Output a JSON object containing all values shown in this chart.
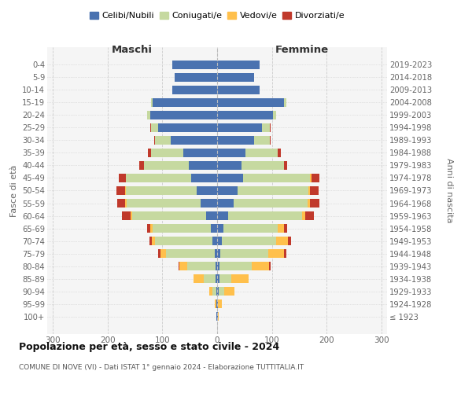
{
  "age_groups": [
    "0-4",
    "5-9",
    "10-14",
    "15-19",
    "20-24",
    "25-29",
    "30-34",
    "35-39",
    "40-44",
    "45-49",
    "50-54",
    "55-59",
    "60-64",
    "65-69",
    "70-74",
    "75-79",
    "80-84",
    "85-89",
    "90-94",
    "95-99",
    "100+"
  ],
  "birth_years": [
    "2019-2023",
    "2014-2018",
    "2009-2013",
    "2004-2008",
    "1999-2003",
    "1994-1998",
    "1989-1993",
    "1984-1988",
    "1979-1983",
    "1974-1978",
    "1969-1973",
    "1964-1968",
    "1959-1963",
    "1954-1958",
    "1949-1953",
    "1944-1948",
    "1939-1943",
    "1934-1938",
    "1929-1933",
    "1924-1928",
    "≤ 1923"
  ],
  "colors": {
    "celibi": "#4a72b0",
    "coniugati": "#c6d9a0",
    "vedovi": "#ffc04c",
    "divorziati": "#c0392b"
  },
  "legend_labels": [
    "Celibi/Nubili",
    "Coniugati/e",
    "Vedovi/e",
    "Divorziati/e"
  ],
  "title_main": "Popolazione per età, sesso e stato civile - 2024",
  "title_sub": "COMUNE DI NOVE (VI) - Dati ISTAT 1° gennaio 2024 - Elaborazione TUTTITALIA.IT",
  "ylabel_left": "Fasce di età",
  "ylabel_right": "Anni di nascita",
  "header_left": "Maschi",
  "header_right": "Femmine",
  "xlim": 310,
  "males": {
    "celibi": [
      82,
      77,
      82,
      118,
      122,
      108,
      85,
      62,
      52,
      48,
      38,
      30,
      20,
      12,
      8,
      5,
      3,
      3,
      2,
      1,
      1
    ],
    "coniugati": [
      0,
      0,
      0,
      3,
      6,
      12,
      28,
      58,
      82,
      118,
      128,
      135,
      135,
      105,
      105,
      88,
      52,
      22,
      6,
      1,
      0
    ],
    "vedovi": [
      0,
      0,
      0,
      0,
      0,
      0,
      0,
      0,
      0,
      1,
      2,
      3,
      3,
      5,
      6,
      10,
      14,
      18,
      6,
      2,
      0
    ],
    "divorziati": [
      0,
      0,
      0,
      0,
      0,
      2,
      2,
      6,
      8,
      12,
      16,
      14,
      16,
      6,
      5,
      4,
      2,
      0,
      0,
      0,
      0
    ]
  },
  "females": {
    "nubili": [
      77,
      67,
      77,
      122,
      102,
      82,
      68,
      52,
      44,
      48,
      38,
      30,
      20,
      12,
      9,
      6,
      5,
      4,
      3,
      1,
      1
    ],
    "coniugate": [
      0,
      0,
      0,
      4,
      6,
      14,
      28,
      58,
      78,
      122,
      128,
      135,
      135,
      98,
      98,
      88,
      58,
      22,
      10,
      1,
      0
    ],
    "vedove": [
      0,
      0,
      0,
      0,
      0,
      0,
      0,
      0,
      0,
      2,
      3,
      5,
      6,
      12,
      22,
      28,
      32,
      32,
      18,
      6,
      2
    ],
    "divorziate": [
      0,
      0,
      0,
      0,
      0,
      2,
      2,
      6,
      6,
      14,
      16,
      16,
      16,
      6,
      6,
      4,
      2,
      0,
      0,
      0,
      0
    ]
  }
}
